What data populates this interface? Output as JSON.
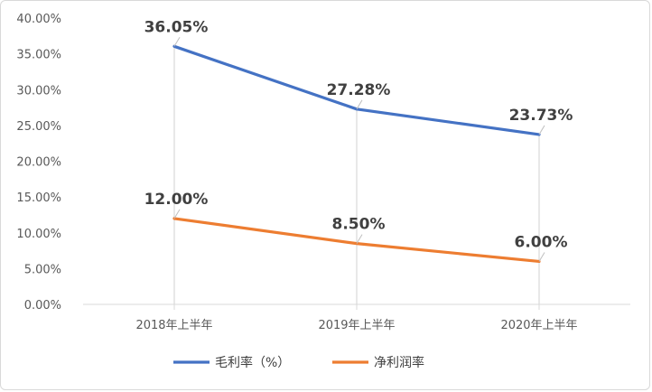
{
  "chart_data": {
    "type": "line",
    "title": "",
    "xlabel": "",
    "ylabel": "",
    "categories": [
      "2018年上半年",
      "2019年上半年",
      "2020年上半年"
    ],
    "ylim": [
      0,
      40
    ],
    "yticks": [
      "0.00%",
      "5.00%",
      "10.00%",
      "15.00%",
      "20.00%",
      "25.00%",
      "30.00%",
      "35.00%",
      "40.00%"
    ],
    "grid": false,
    "legend_position": "bottom",
    "series": [
      {
        "name": "毛利率（%）",
        "values": [
          36.05,
          27.28,
          23.73
        ],
        "labels": [
          "36.05%",
          "27.28%",
          "23.73%"
        ],
        "color": "#4472c4"
      },
      {
        "name": "净利润率",
        "values": [
          12.0,
          8.5,
          6.0
        ],
        "labels": [
          "12.00%",
          "8.50%",
          "6.00%"
        ],
        "color": "#ed7d31"
      }
    ]
  }
}
